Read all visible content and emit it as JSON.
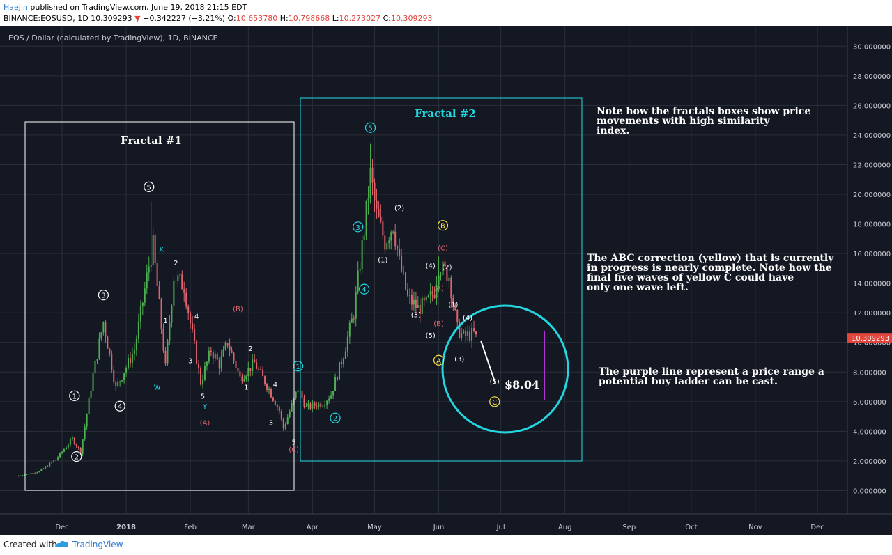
{
  "header": {
    "author": "Haejin",
    "published_text": " published on TradingView.com, June 19, 2018 21:15 EDT",
    "symbol": "BINANCE:EOSUSD, 1D",
    "last": "10.309293",
    "change": "−0.342227 (−3.21%)",
    "o_label": "O:",
    "o_value": "10.653780",
    "h_label": "H:",
    "h_value": "10.798668",
    "l_label": "L:",
    "l_value": "10.273027",
    "c_label": "C:",
    "c_value": "10.309293"
  },
  "footer": {
    "created": "Created with",
    "brand": "TradingView"
  },
  "colors": {
    "background": "#141823",
    "up": "#4caf50",
    "down": "#e0636e",
    "grid": "#2a2f3a",
    "cyan": "#23d7e0",
    "white": "#ffffff",
    "yellow": "#f5e04a",
    "red": "#e0636e",
    "purple": "#b12fd6",
    "axis_text": "#c9ccd3",
    "price_tag": "#e0463c"
  },
  "chart_data": {
    "type": "candlestick",
    "title": "EOS / Dollar (calculated by TradingView), 1D, BINANCE",
    "x_ticks": [
      "Dec",
      "2018",
      "Feb",
      "Mar",
      "Apr",
      "May",
      "Jun",
      "Jul",
      "Aug",
      "Sep",
      "Oct",
      "Nov",
      "Dec"
    ],
    "y_ticks": [
      "30.000000",
      "28.000000",
      "26.000000",
      "24.000000",
      "22.000000",
      "20.000000",
      "18.000000",
      "16.000000",
      "14.000000",
      "12.000000",
      "10.000000",
      "8.000000",
      "6.000000",
      "4.000000",
      "2.000000",
      "0.000000"
    ],
    "ylim": [
      -1.2,
      31.0
    ],
    "last_price_tag": "10.309293",
    "price_path": [
      [
        "2017-11-10",
        1.0
      ],
      [
        "2017-11-20",
        1.3
      ],
      [
        "2017-11-28",
        2.1
      ],
      [
        "2017-12-06",
        3.5
      ],
      [
        "2017-12-10",
        2.6
      ],
      [
        "2017-12-16",
        7.8
      ],
      [
        "2017-12-21",
        11.4
      ],
      [
        "2017-12-27",
        6.9
      ],
      [
        "2018-01-05",
        9.5
      ],
      [
        "2018-01-12",
        15.2
      ],
      [
        "2018-01-14",
        16.5
      ],
      [
        "2018-01-20",
        8.3
      ],
      [
        "2018-01-24",
        14.5
      ],
      [
        "2018-01-29",
        13.8
      ],
      [
        "2018-02-01",
        11.3
      ],
      [
        "2018-02-06",
        7.3
      ],
      [
        "2018-02-11",
        9.5
      ],
      [
        "2018-02-15",
        8.5
      ],
      [
        "2018-02-19",
        10.0
      ],
      [
        "2018-02-25",
        7.6
      ],
      [
        "2018-03-04",
        8.6
      ],
      [
        "2018-03-10",
        7.1
      ],
      [
        "2018-03-16",
        5.4
      ],
      [
        "2018-03-18",
        4.2
      ],
      [
        "2018-03-25",
        6.9
      ],
      [
        "2018-03-29",
        5.6
      ],
      [
        "2018-04-06",
        5.9
      ],
      [
        "2018-04-10",
        6.5
      ],
      [
        "2018-04-16",
        9.2
      ],
      [
        "2018-04-21",
        12.0
      ],
      [
        "2018-04-26",
        17.6
      ],
      [
        "2018-04-29",
        21.3
      ],
      [
        "2018-05-02",
        18.6
      ],
      [
        "2018-05-06",
        16.8
      ],
      [
        "2018-05-10",
        18.0
      ],
      [
        "2018-05-13",
        15.4
      ],
      [
        "2018-05-17",
        13.0
      ],
      [
        "2018-05-22",
        12.3
      ],
      [
        "2018-05-26",
        12.6
      ],
      [
        "2018-05-30",
        13.5
      ],
      [
        "2018-06-01",
        15.2
      ],
      [
        "2018-06-06",
        14.5
      ],
      [
        "2018-06-10",
        10.9
      ],
      [
        "2018-06-13",
        10.4
      ],
      [
        "2018-06-18",
        10.6
      ],
      [
        "2018-06-19",
        10.3
      ]
    ],
    "fractal_1_label": "Fractal #1",
    "fractal_2_label": "Fractal #2",
    "projection_label": "$8.04",
    "purple_range": [
      6.1,
      10.8
    ],
    "note_1": "Note how the fractals boxes show price\nmovements with high similarity\nindex.",
    "note_2": "The ABC correction (yellow) that is currently\nin progress is nearly complete. Note how the\nfinal five waves of yellow C could have\nonly one wave left.",
    "note_3": "The purple line represent a price range a\npotential buy ladder can be cast.",
    "wave_labels": [
      {
        "t": "1",
        "style": "wc",
        "date": "2017-12-07",
        "y": 6.4
      },
      {
        "t": "2",
        "style": "wc",
        "date": "2017-12-08",
        "y": 2.3
      },
      {
        "t": "3",
        "style": "wc",
        "date": "2017-12-21",
        "y": 13.2
      },
      {
        "t": "4",
        "style": "wc",
        "date": "2017-12-29",
        "y": 5.7
      },
      {
        "t": "5",
        "style": "wc",
        "date": "2018-01-12",
        "y": 20.5
      },
      {
        "t": "X",
        "style": "c",
        "date": "2018-01-18",
        "y": 16.3
      },
      {
        "t": "W",
        "style": "c",
        "date": "2018-01-16",
        "y": 7.0
      },
      {
        "t": "1",
        "style": "w",
        "date": "2018-01-20",
        "y": 11.5
      },
      {
        "t": "2",
        "style": "w",
        "date": "2018-01-25",
        "y": 15.4
      },
      {
        "t": "3",
        "style": "w",
        "date": "2018-02-01",
        "y": 8.8
      },
      {
        "t": "4",
        "style": "w",
        "date": "2018-02-04",
        "y": 11.8
      },
      {
        "t": "5",
        "style": "w",
        "date": "2018-02-07",
        "y": 6.4
      },
      {
        "t": "Y",
        "style": "c",
        "date": "2018-02-08",
        "y": 5.7
      },
      {
        "t": "(A)",
        "style": "r",
        "date": "2018-02-08",
        "y": 4.6
      },
      {
        "t": "(B)",
        "style": "r",
        "date": "2018-02-24",
        "y": 12.3
      },
      {
        "t": "2",
        "style": "w",
        "date": "2018-03-02",
        "y": 9.6
      },
      {
        "t": "1",
        "style": "w",
        "date": "2018-02-28",
        "y": 7.0
      },
      {
        "t": "4",
        "style": "w",
        "date": "2018-03-14",
        "y": 7.2
      },
      {
        "t": "3",
        "style": "w",
        "date": "2018-03-12",
        "y": 4.6
      },
      {
        "t": "5",
        "style": "w",
        "date": "2018-03-23",
        "y": 3.3
      },
      {
        "t": "(C)",
        "style": "r",
        "date": "2018-03-23",
        "y": 2.8
      },
      {
        "t": "1",
        "style": "cc",
        "date": "2018-03-25",
        "y": 8.4
      },
      {
        "t": "2",
        "style": "cc",
        "date": "2018-04-12",
        "y": 4.9
      },
      {
        "t": "3",
        "style": "cc",
        "date": "2018-04-23",
        "y": 17.8
      },
      {
        "t": "4",
        "style": "cc",
        "date": "2018-04-26",
        "y": 13.6
      },
      {
        "t": "5",
        "style": "cc",
        "date": "2018-04-29",
        "y": 24.5
      },
      {
        "t": "(1)",
        "style": "w",
        "date": "2018-05-05",
        "y": 15.6
      },
      {
        "t": "(2)",
        "style": "w",
        "date": "2018-05-13",
        "y": 19.1
      },
      {
        "t": "(3)",
        "style": "w",
        "date": "2018-05-21",
        "y": 11.9
      },
      {
        "t": "(4)",
        "style": "w",
        "date": "2018-05-28",
        "y": 15.2
      },
      {
        "t": "(A)",
        "style": "r",
        "date": "2018-06-01",
        "y": 13.7
      },
      {
        "t": "(5)",
        "style": "w",
        "date": "2018-05-28",
        "y": 10.5
      },
      {
        "t": "(B)",
        "style": "r",
        "date": "2018-06-01",
        "y": 11.3
      },
      {
        "t": "A",
        "style": "yc",
        "date": "2018-06-01",
        "y": 8.8
      },
      {
        "t": "B",
        "style": "yc",
        "date": "2018-06-03",
        "y": 17.9
      },
      {
        "t": "(C)",
        "style": "r",
        "date": "2018-06-03",
        "y": 16.4
      },
      {
        "t": "(2)",
        "style": "w",
        "date": "2018-06-05",
        "y": 15.1
      },
      {
        "t": "(1)",
        "style": "w",
        "date": "2018-06-08",
        "y": 12.6
      },
      {
        "t": "(4)",
        "style": "w",
        "date": "2018-06-15",
        "y": 11.7
      },
      {
        "t": "(3)",
        "style": "w",
        "date": "2018-06-11",
        "y": 8.9
      },
      {
        "t": "(5)",
        "style": "w",
        "date": "2018-06-28",
        "y": 7.4
      },
      {
        "t": "C",
        "style": "yc",
        "date": "2018-06-28",
        "y": 6.0
      }
    ]
  }
}
